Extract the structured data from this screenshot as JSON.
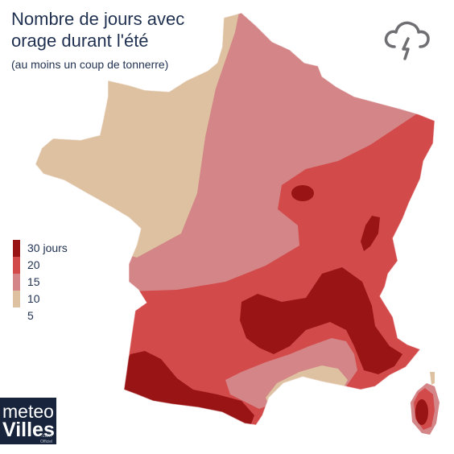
{
  "title": {
    "line1": "Nombre de jours avec",
    "line2": "orage durant l'été",
    "subtitle": "(au moins un coup de tonnerre)"
  },
  "legend": [
    {
      "label": "30 jours",
      "color": "#991414"
    },
    {
      "label": "20",
      "color": "#d34a4b"
    },
    {
      "label": "15",
      "color": "#d48587"
    },
    {
      "label": "10",
      "color": "#ddc1a0"
    },
    {
      "label": "5",
      "color": "#ffffff"
    }
  ],
  "logo": {
    "word1": "meteo",
    "word2": "Villes",
    "suffix": ".com",
    "tag": "Officiel"
  },
  "icon": "thunderstorm-cloud-icon",
  "colors": {
    "title_text": "#1f3050",
    "zone_5": "#ddc1a0",
    "zone_10": "#d48587",
    "zone_20": "#d34a4b",
    "zone_30": "#991414",
    "logo_bg": "#17243b"
  }
}
